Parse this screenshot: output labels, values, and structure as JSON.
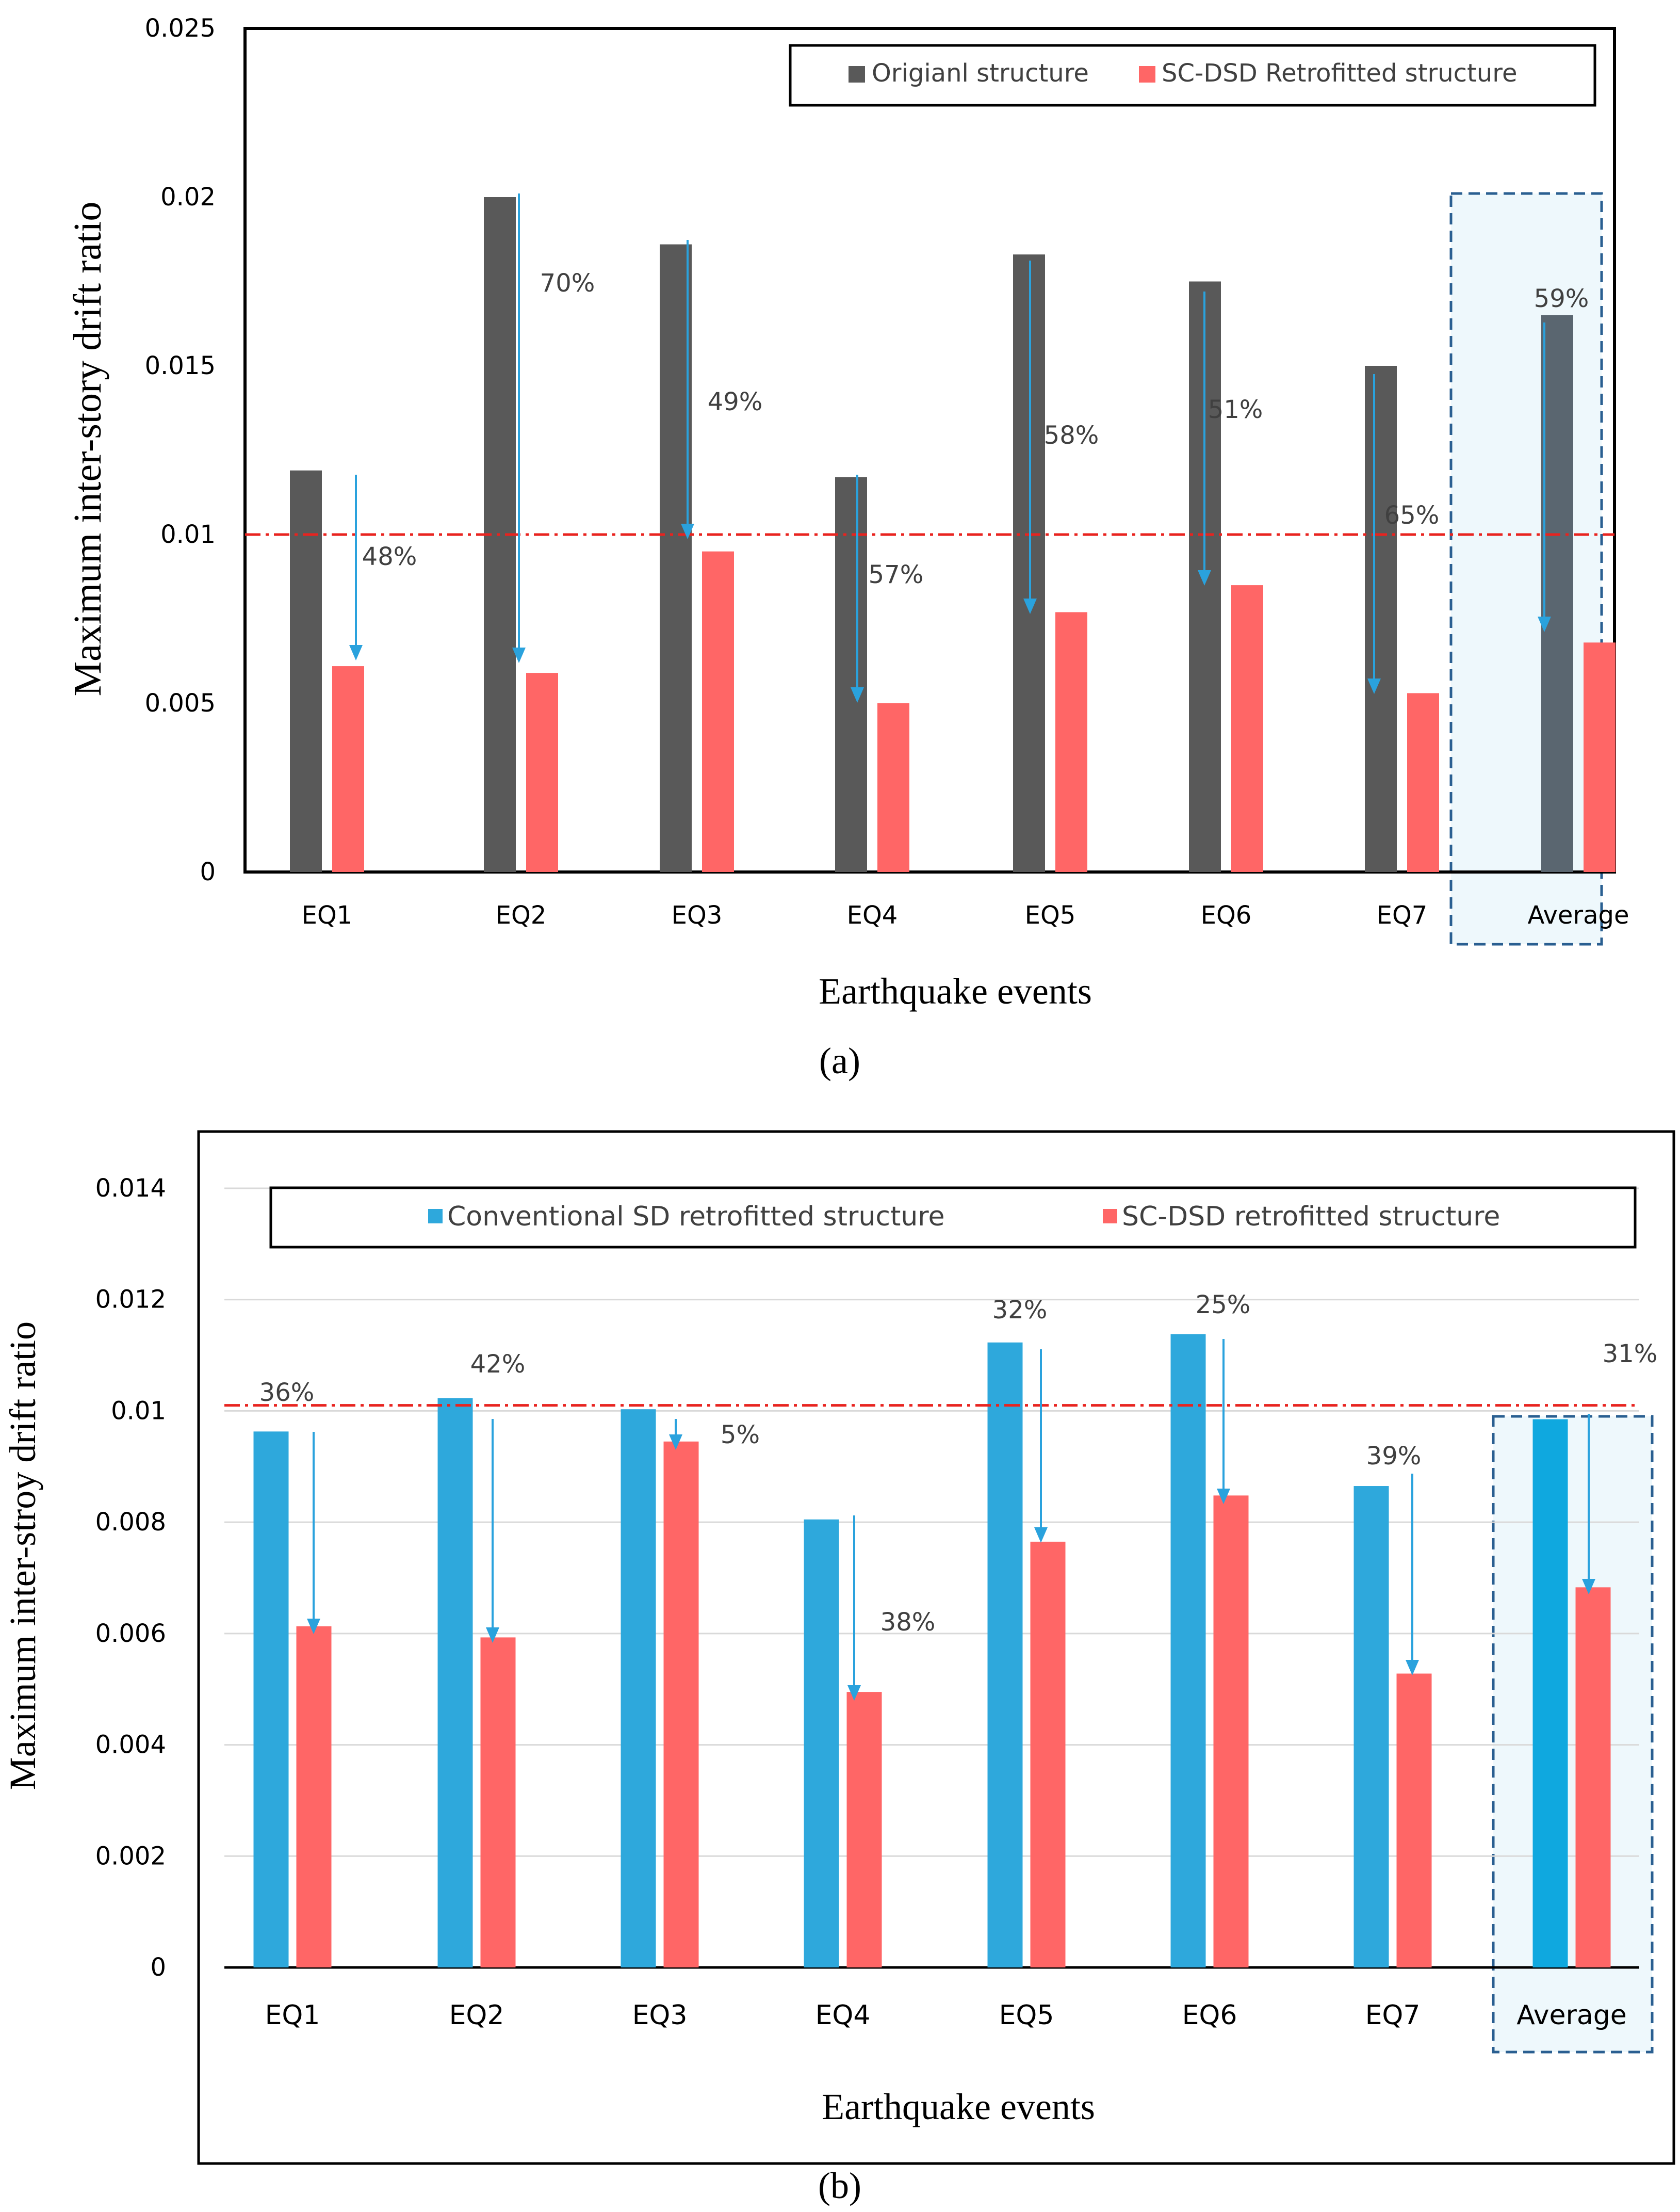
{
  "chart_data": [
    {
      "panel_label": "a",
      "type": "bar",
      "title": "",
      "xlabel": "Earthquake events",
      "ylabel": "Maximum inter-story drift ratio",
      "categories": [
        "EQ1",
        "EQ2",
        "EQ3",
        "EQ4",
        "EQ5",
        "EQ6",
        "EQ7",
        "Average"
      ],
      "series": [
        {
          "name": "Origianl structure",
          "color": "#595959",
          "average_color": "#5a6670",
          "values": [
            0.0119,
            0.02,
            0.0186,
            0.0117,
            0.0183,
            0.0175,
            0.015,
            0.0165
          ]
        },
        {
          "name": "SC-DSD Retrofitted structure",
          "color": "#ff6666",
          "values": [
            0.0061,
            0.0059,
            0.0095,
            0.005,
            0.0077,
            0.0085,
            0.0053,
            0.0068
          ]
        }
      ],
      "reductions": [
        "48%",
        "70%",
        "49%",
        "57%",
        "58%",
        "51%",
        "65%",
        "59%"
      ],
      "ylim": [
        0,
        0.025
      ],
      "yticks": [
        0,
        0.005,
        0.01,
        0.015,
        0.02,
        0.025
      ],
      "yticklabels": [
        "0",
        "0.005",
        "0.01",
        "0.015",
        "0.02",
        "0.025"
      ],
      "limit_line": 0.01,
      "limit_color": "#e8231f",
      "arrow_color": "#2aa2dd",
      "highlight_fill": "#eef8fc",
      "highlight_border": "#2a5f91",
      "legend_position": "top-right",
      "grid": false
    },
    {
      "panel_label": "b",
      "type": "bar",
      "title": "",
      "xlabel": "Earthquake events",
      "ylabel": "Maximum inter-stroy drift ratio",
      "categories": [
        "EQ1",
        "EQ2",
        "EQ3",
        "EQ4",
        "EQ5",
        "EQ6",
        "EQ7",
        "Average"
      ],
      "series": [
        {
          "name": "Conventional SD retrofitted  structure",
          "color": "#2ea8dc",
          "average_color": "#0fa8df",
          "values": [
            0.00963,
            0.01023,
            0.01003,
            0.00805,
            0.01123,
            0.01138,
            0.00865,
            0.00985
          ]
        },
        {
          "name": "SC-DSD retrofitted structure",
          "color": "#ff6666",
          "values": [
            0.00613,
            0.00593,
            0.00945,
            0.00495,
            0.00765,
            0.00848,
            0.00528,
            0.00683
          ]
        }
      ],
      "reductions": [
        "36%",
        "42%",
        "5%",
        "38%",
        "32%",
        "25%",
        "39%",
        "31%"
      ],
      "ylim": [
        0,
        0.014
      ],
      "yticks": [
        0,
        0.002,
        0.004,
        0.006,
        0.008,
        0.01,
        0.012,
        0.014
      ],
      "yticklabels": [
        "0",
        "0.002",
        "0.004",
        "0.006",
        "0.008",
        "0.01",
        "0.012",
        "0.014"
      ],
      "limit_line": 0.0101,
      "limit_color": "#e8231f",
      "arrow_color": "#2aa2dd",
      "highlight_fill": "#eef8fc",
      "highlight_border": "#2a5f91",
      "legend_position": "top",
      "grid": true
    }
  ],
  "captions": [
    "(a)",
    "(b)"
  ]
}
